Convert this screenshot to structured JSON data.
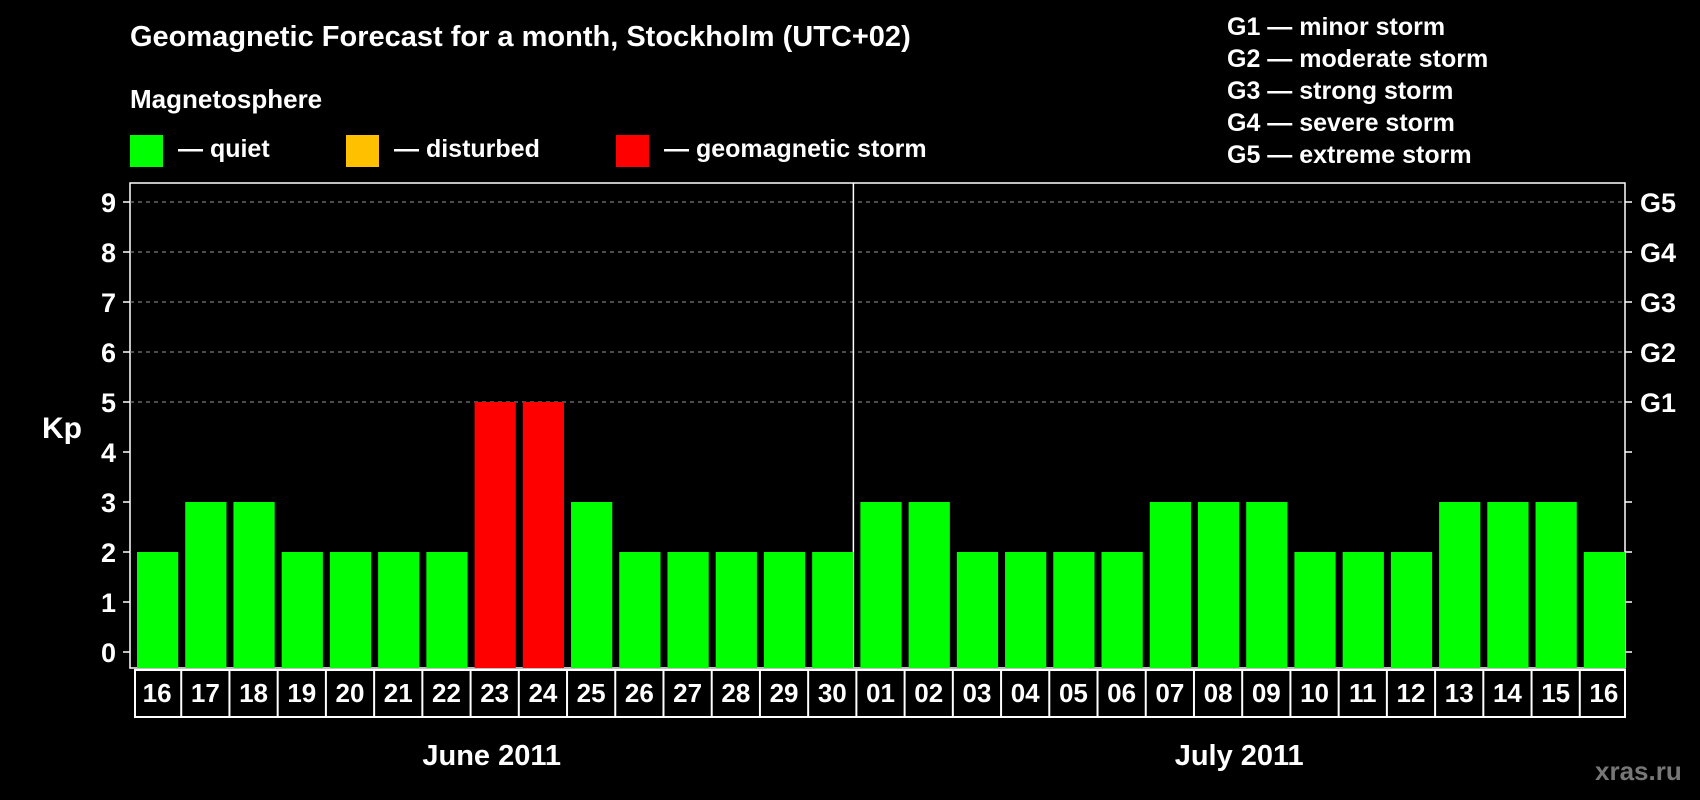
{
  "title": "Geomagnetic Forecast for a month, Stockholm (UTC+02)",
  "legend": {
    "heading": "Magnetosphere",
    "items": [
      {
        "label": "— quiet",
        "color": "#00ff00"
      },
      {
        "label": "— disturbed",
        "color": "#ffc000"
      },
      {
        "label": "— geomagnetic storm",
        "color": "#ff0000"
      }
    ]
  },
  "storm_scale": [
    {
      "level": "G1",
      "label": "G1 — minor storm"
    },
    {
      "level": "G2",
      "label": "G2 — moderate storm"
    },
    {
      "level": "G3",
      "label": "G3 — strong storm"
    },
    {
      "level": "G4",
      "label": "G4 — severe storm"
    },
    {
      "level": "G5",
      "label": "G5 — extreme storm"
    }
  ],
  "watermark": "xras.ru",
  "chart_data": {
    "type": "bar",
    "ylabel": "Kp",
    "ylim": [
      0,
      9
    ],
    "y_ticks": [
      "0",
      "1",
      "2",
      "3",
      "4",
      "5",
      "6",
      "7",
      "8",
      "9"
    ],
    "right_axis_ticks": [
      {
        "value": 5,
        "label": "G1"
      },
      {
        "value": 6,
        "label": "G2"
      },
      {
        "value": 7,
        "label": "G3"
      },
      {
        "value": 8,
        "label": "G4"
      },
      {
        "value": 9,
        "label": "G5"
      }
    ],
    "grid": "dashed horizontal at 5–9",
    "categories": [
      "16",
      "17",
      "18",
      "19",
      "20",
      "21",
      "22",
      "23",
      "24",
      "25",
      "26",
      "27",
      "28",
      "29",
      "30",
      "01",
      "02",
      "03",
      "04",
      "05",
      "06",
      "07",
      "08",
      "09",
      "10",
      "11",
      "12",
      "13",
      "14",
      "15",
      "16"
    ],
    "values": [
      2,
      3,
      3,
      2,
      2,
      2,
      2,
      5,
      5,
      3,
      2,
      2,
      2,
      2,
      2,
      3,
      3,
      2,
      2,
      2,
      2,
      3,
      3,
      3,
      2,
      2,
      2,
      3,
      3,
      3,
      2
    ],
    "bar_colors": [
      "#00ff00",
      "#00ff00",
      "#00ff00",
      "#00ff00",
      "#00ff00",
      "#00ff00",
      "#00ff00",
      "#ff0000",
      "#ff0000",
      "#00ff00",
      "#00ff00",
      "#00ff00",
      "#00ff00",
      "#00ff00",
      "#00ff00",
      "#00ff00",
      "#00ff00",
      "#00ff00",
      "#00ff00",
      "#00ff00",
      "#00ff00",
      "#00ff00",
      "#00ff00",
      "#00ff00",
      "#00ff00",
      "#00ff00",
      "#00ff00",
      "#00ff00",
      "#00ff00",
      "#00ff00",
      "#00ff00"
    ],
    "months": [
      {
        "label": "June 2011",
        "days": 15
      },
      {
        "label": "July 2011",
        "days": 16
      }
    ]
  }
}
